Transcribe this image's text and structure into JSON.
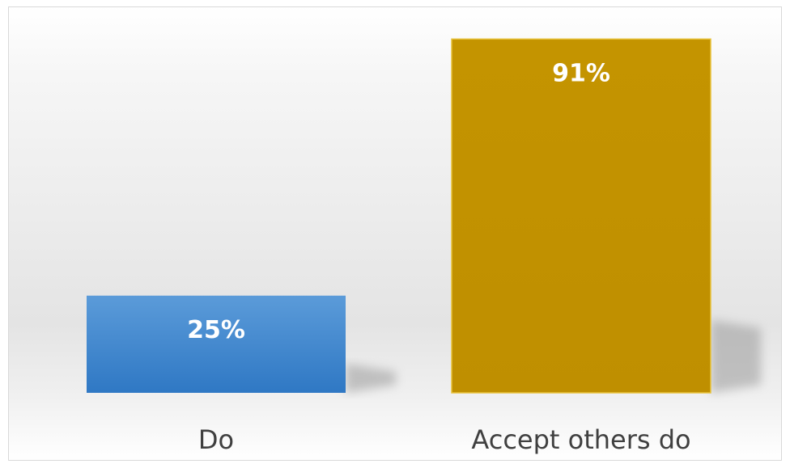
{
  "chart_data": {
    "type": "bar",
    "categories": [
      "Do",
      "Accept others do"
    ],
    "values": [
      25,
      91
    ],
    "data_labels": [
      "25%",
      "91%"
    ],
    "ylim": [
      0,
      100
    ],
    "grid": false,
    "legend": "none",
    "colors": [
      "#3f87cf",
      "#c29200"
    ]
  }
}
